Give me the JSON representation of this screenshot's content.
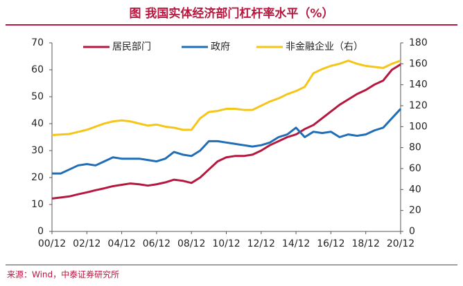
{
  "chart_data": {
    "type": "line",
    "title": "图  我国实体经济部门杠杆率水平（%）",
    "source": "来源：Wind，中泰证券研究所",
    "categories": [
      "00/12",
      null,
      null,
      null,
      "02/12",
      null,
      null,
      null,
      "04/12",
      null,
      null,
      null,
      "06/12",
      null,
      null,
      null,
      "08/12",
      null,
      null,
      null,
      "10/12",
      null,
      null,
      null,
      "12/12",
      null,
      null,
      null,
      "14/12",
      null,
      null,
      null,
      "16/12",
      null,
      null,
      null,
      "18/12",
      null,
      null,
      null,
      "20/12"
    ],
    "series": [
      {
        "name": "居民部门",
        "color": "#b5173f",
        "axis": "y",
        "values": [
          12.2,
          12.6,
          13,
          13.8,
          14.5,
          15.3,
          16,
          16.8,
          17.3,
          17.8,
          17.5,
          17,
          17.5,
          18.2,
          19.2,
          18.8,
          18,
          20,
          23,
          26,
          27.5,
          28,
          28,
          28.5,
          30,
          32,
          33.5,
          35,
          36,
          38,
          39.5,
          42,
          44.5,
          47,
          49,
          51,
          52.5,
          54.5,
          56,
          60,
          62
        ]
      },
      {
        "name": "政府",
        "color": "#1f6eb5",
        "axis": "y",
        "values": [
          21.5,
          21.5,
          23,
          24.5,
          25,
          24.5,
          26,
          27.5,
          27,
          27,
          27,
          26.5,
          26,
          27,
          29.5,
          28.5,
          28,
          30,
          33.5,
          33.5,
          33,
          32.5,
          32,
          31.5,
          32,
          33,
          35,
          36,
          38.5,
          35,
          37,
          36.5,
          37,
          35,
          36,
          35.5,
          36,
          37.5,
          38.5,
          42,
          45.5
        ]
      },
      {
        "name": "非金融企业（右）",
        "color": "#f5c518",
        "axis": "y2",
        "values": [
          92,
          92.5,
          93,
          95,
          97,
          100,
          103,
          105,
          106,
          105,
          103,
          101,
          102,
          100,
          99,
          97,
          97,
          108,
          114,
          115,
          117,
          117,
          116,
          116,
          120,
          124,
          127,
          131,
          134,
          138,
          151,
          155,
          158,
          160,
          163,
          160,
          158,
          157,
          156,
          160,
          163
        ]
      }
    ],
    "ylim": [
      0,
      70
    ],
    "yticks": [
      0,
      10,
      20,
      30,
      40,
      50,
      60,
      70
    ],
    "y2lim": [
      0,
      180
    ],
    "y2ticks": [
      0,
      20,
      40,
      60,
      80,
      100,
      120,
      140,
      160,
      180
    ]
  }
}
